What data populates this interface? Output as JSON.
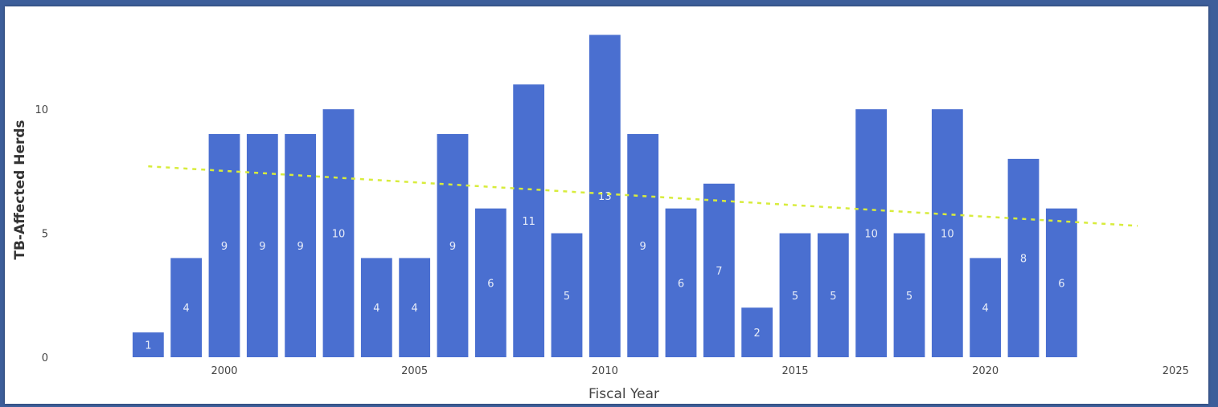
{
  "chart_data": {
    "type": "bar",
    "xlabel": "Fiscal Year",
    "ylabel": "TB-Affected Herds",
    "x": [
      1998,
      1999,
      2000,
      2001,
      2002,
      2003,
      2004,
      2005,
      2006,
      2007,
      2008,
      2009,
      2010,
      2011,
      2012,
      2013,
      2014,
      2015,
      2016,
      2017,
      2018,
      2019,
      2020,
      2021,
      2022
    ],
    "values": [
      1,
      4,
      9,
      9,
      9,
      10,
      4,
      4,
      9,
      6,
      11,
      5,
      13,
      9,
      6,
      7,
      2,
      5,
      5,
      10,
      5,
      10,
      4,
      8,
      6
    ],
    "xlim": [
      1995.5,
      2025.5
    ],
    "ylim": [
      0,
      13.5
    ],
    "x_ticks": [
      "2000",
      "2005",
      "2010",
      "2015",
      "2020",
      "2025"
    ],
    "y_ticks": [
      "0",
      "5",
      "10"
    ],
    "trendline": {
      "style": "dashed",
      "x": [
        1998,
        2024
      ],
      "y": [
        7.7,
        5.3
      ]
    },
    "colors": {
      "bar": "#4a6fd0",
      "trendline": "#d8ec3c",
      "bar_label": "#e8edf8"
    },
    "data_labels": true
  }
}
